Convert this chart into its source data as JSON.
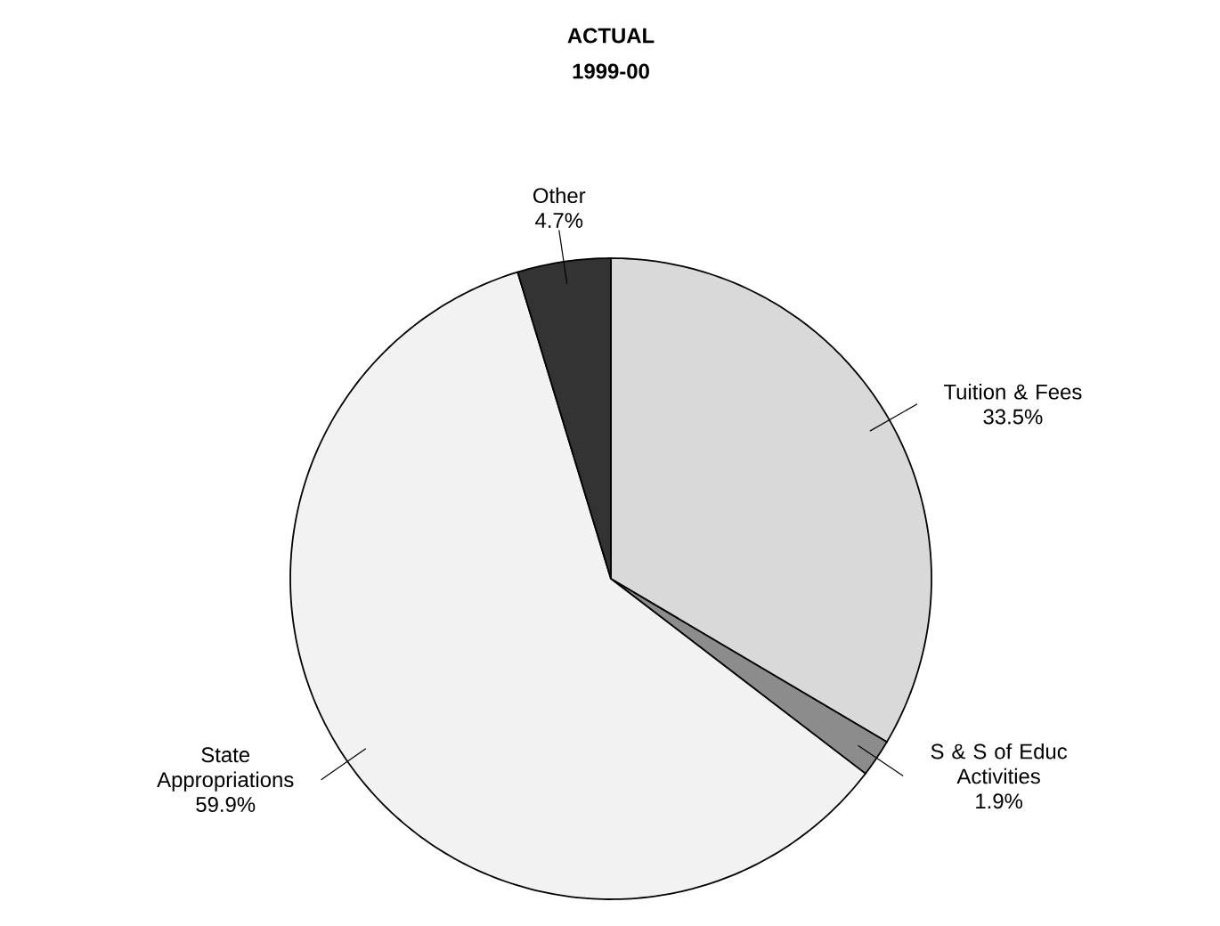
{
  "chart_data": {
    "type": "pie",
    "title": "ACTUAL",
    "subtitle": "1999-00",
    "categories": [
      "Tuition & Fees",
      "S & S of Educ Activities",
      "State Appropriations",
      "Other"
    ],
    "values": [
      33.5,
      1.9,
      59.9,
      4.7
    ],
    "value_labels": [
      "33.5%",
      "1.9%",
      "59.9%",
      "4.7%"
    ],
    "colors": [
      "#d9d9d9",
      "#8c8c8c",
      "#f2f2f2",
      "#333333"
    ]
  }
}
